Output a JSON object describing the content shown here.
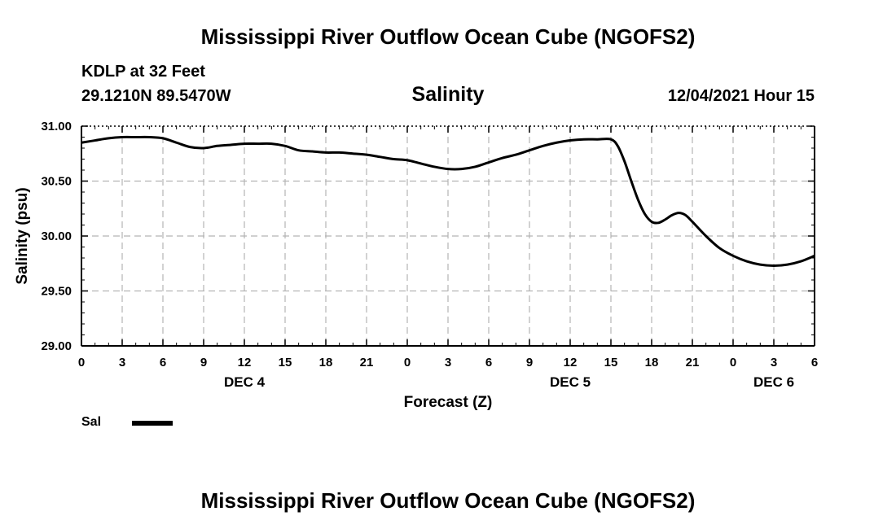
{
  "header": {
    "title": "Mississippi River Outflow Ocean Cube (NGOFS2)",
    "station": "KDLP at 32 Feet",
    "coords": "29.1210N  89.5470W",
    "timestamp": "12/04/2021 Hour 15"
  },
  "footer": {
    "title": "Mississippi River Outflow Ocean Cube (NGOFS2)"
  },
  "chart_data": {
    "type": "line",
    "title": "Salinity",
    "xlabel": "Forecast (Z)",
    "ylabel": "Salinity (psu)",
    "xlim": [
      0,
      54
    ],
    "ylim": [
      29.0,
      31.0
    ],
    "x_ticks": [
      0,
      3,
      6,
      9,
      12,
      15,
      18,
      21,
      24,
      27,
      30,
      33,
      36,
      39,
      42,
      45,
      48,
      51,
      54
    ],
    "x_tick_labels": [
      "0",
      "3",
      "6",
      "9",
      "12",
      "15",
      "18",
      "21",
      "0",
      "3",
      "6",
      "9",
      "12",
      "15",
      "18",
      "21",
      "0",
      "3",
      "6"
    ],
    "y_ticks": [
      29.0,
      29.5,
      30.0,
      30.5,
      31.0
    ],
    "y_tick_labels": [
      "29.00",
      "29.50",
      "30.00",
      "30.50",
      "31.00"
    ],
    "day_labels": [
      {
        "x": 12,
        "label": "DEC 4"
      },
      {
        "x": 36,
        "label": "DEC 5"
      },
      {
        "x": 51,
        "label": "DEC 6"
      }
    ],
    "grid": true,
    "legend_position": "bottom-left",
    "series": [
      {
        "name": "Sal",
        "color": "#000000",
        "x": [
          0,
          1,
          2,
          3,
          4,
          5,
          6,
          7,
          8,
          9,
          10,
          11,
          12,
          13,
          14,
          15,
          16,
          17,
          18,
          19,
          20,
          21,
          22,
          23,
          24,
          25,
          26,
          27,
          28,
          29,
          30,
          31,
          32,
          33,
          34,
          35,
          36,
          37,
          38,
          39,
          39.5,
          40,
          40.5,
          41,
          41.5,
          42,
          42.5,
          43,
          43.5,
          44,
          44.5,
          45,
          46,
          47,
          48,
          49,
          50,
          51,
          52,
          53,
          54
        ],
        "y": [
          30.85,
          30.87,
          30.89,
          30.9,
          30.9,
          30.9,
          30.89,
          30.85,
          30.81,
          30.8,
          30.82,
          30.83,
          30.84,
          30.84,
          30.84,
          30.82,
          30.78,
          30.77,
          30.76,
          30.76,
          30.75,
          30.74,
          30.72,
          30.7,
          30.69,
          30.66,
          30.63,
          30.61,
          30.61,
          30.63,
          30.67,
          30.71,
          30.74,
          30.78,
          30.82,
          30.85,
          30.87,
          30.88,
          30.88,
          30.88,
          30.82,
          30.68,
          30.5,
          30.33,
          30.2,
          30.13,
          30.12,
          30.15,
          30.19,
          30.21,
          30.19,
          30.13,
          30.0,
          29.89,
          29.82,
          29.77,
          29.74,
          29.73,
          29.74,
          29.77,
          29.82
        ]
      }
    ]
  },
  "legend": {
    "items": [
      {
        "label": "Sal",
        "color": "#000000"
      }
    ]
  }
}
